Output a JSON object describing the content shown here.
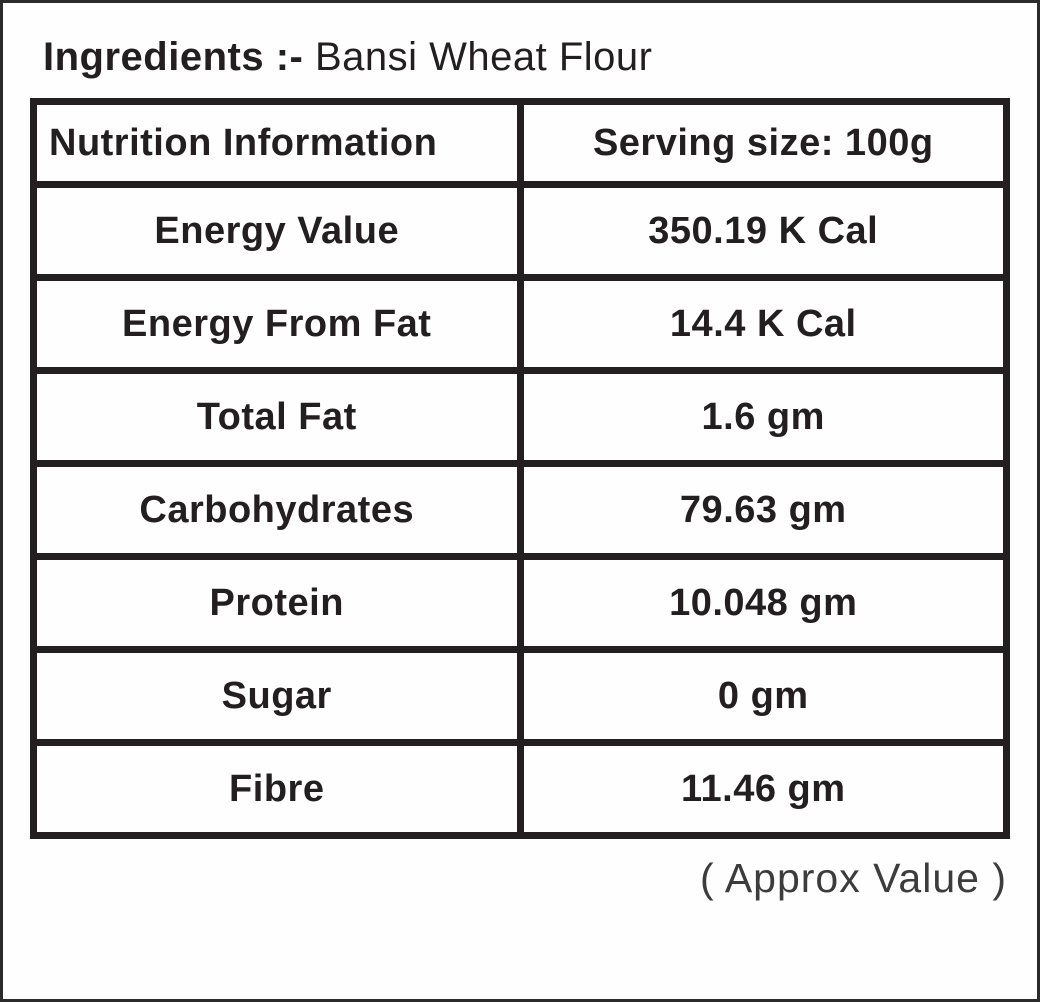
{
  "page": {
    "title_label": "Ingredients :-",
    "title_value": "Bansi Wheat Flour"
  },
  "table": {
    "columns": [
      "Nutrition Information",
      "Serving size: 100g"
    ],
    "rows": [
      {
        "nutrient": "Energy Value",
        "amount": "350.19 K Cal"
      },
      {
        "nutrient": "Energy From Fat",
        "amount": "14.4 K Cal"
      },
      {
        "nutrient": "Total Fat",
        "amount": "1.6 gm"
      },
      {
        "nutrient": "Carbohydrates",
        "amount": "79.63 gm"
      },
      {
        "nutrient": "Protein",
        "amount": "10.048 gm"
      },
      {
        "nutrient": "Sugar",
        "amount": "0 gm"
      },
      {
        "nutrient": "Fibre",
        "amount": "11.46 gm"
      }
    ]
  },
  "footer": {
    "note": "( Approx Value )"
  },
  "colors": {
    "border": "#231f20",
    "text": "#231f20",
    "footer_text": "#3c3c3c",
    "background": "#fefefe"
  }
}
